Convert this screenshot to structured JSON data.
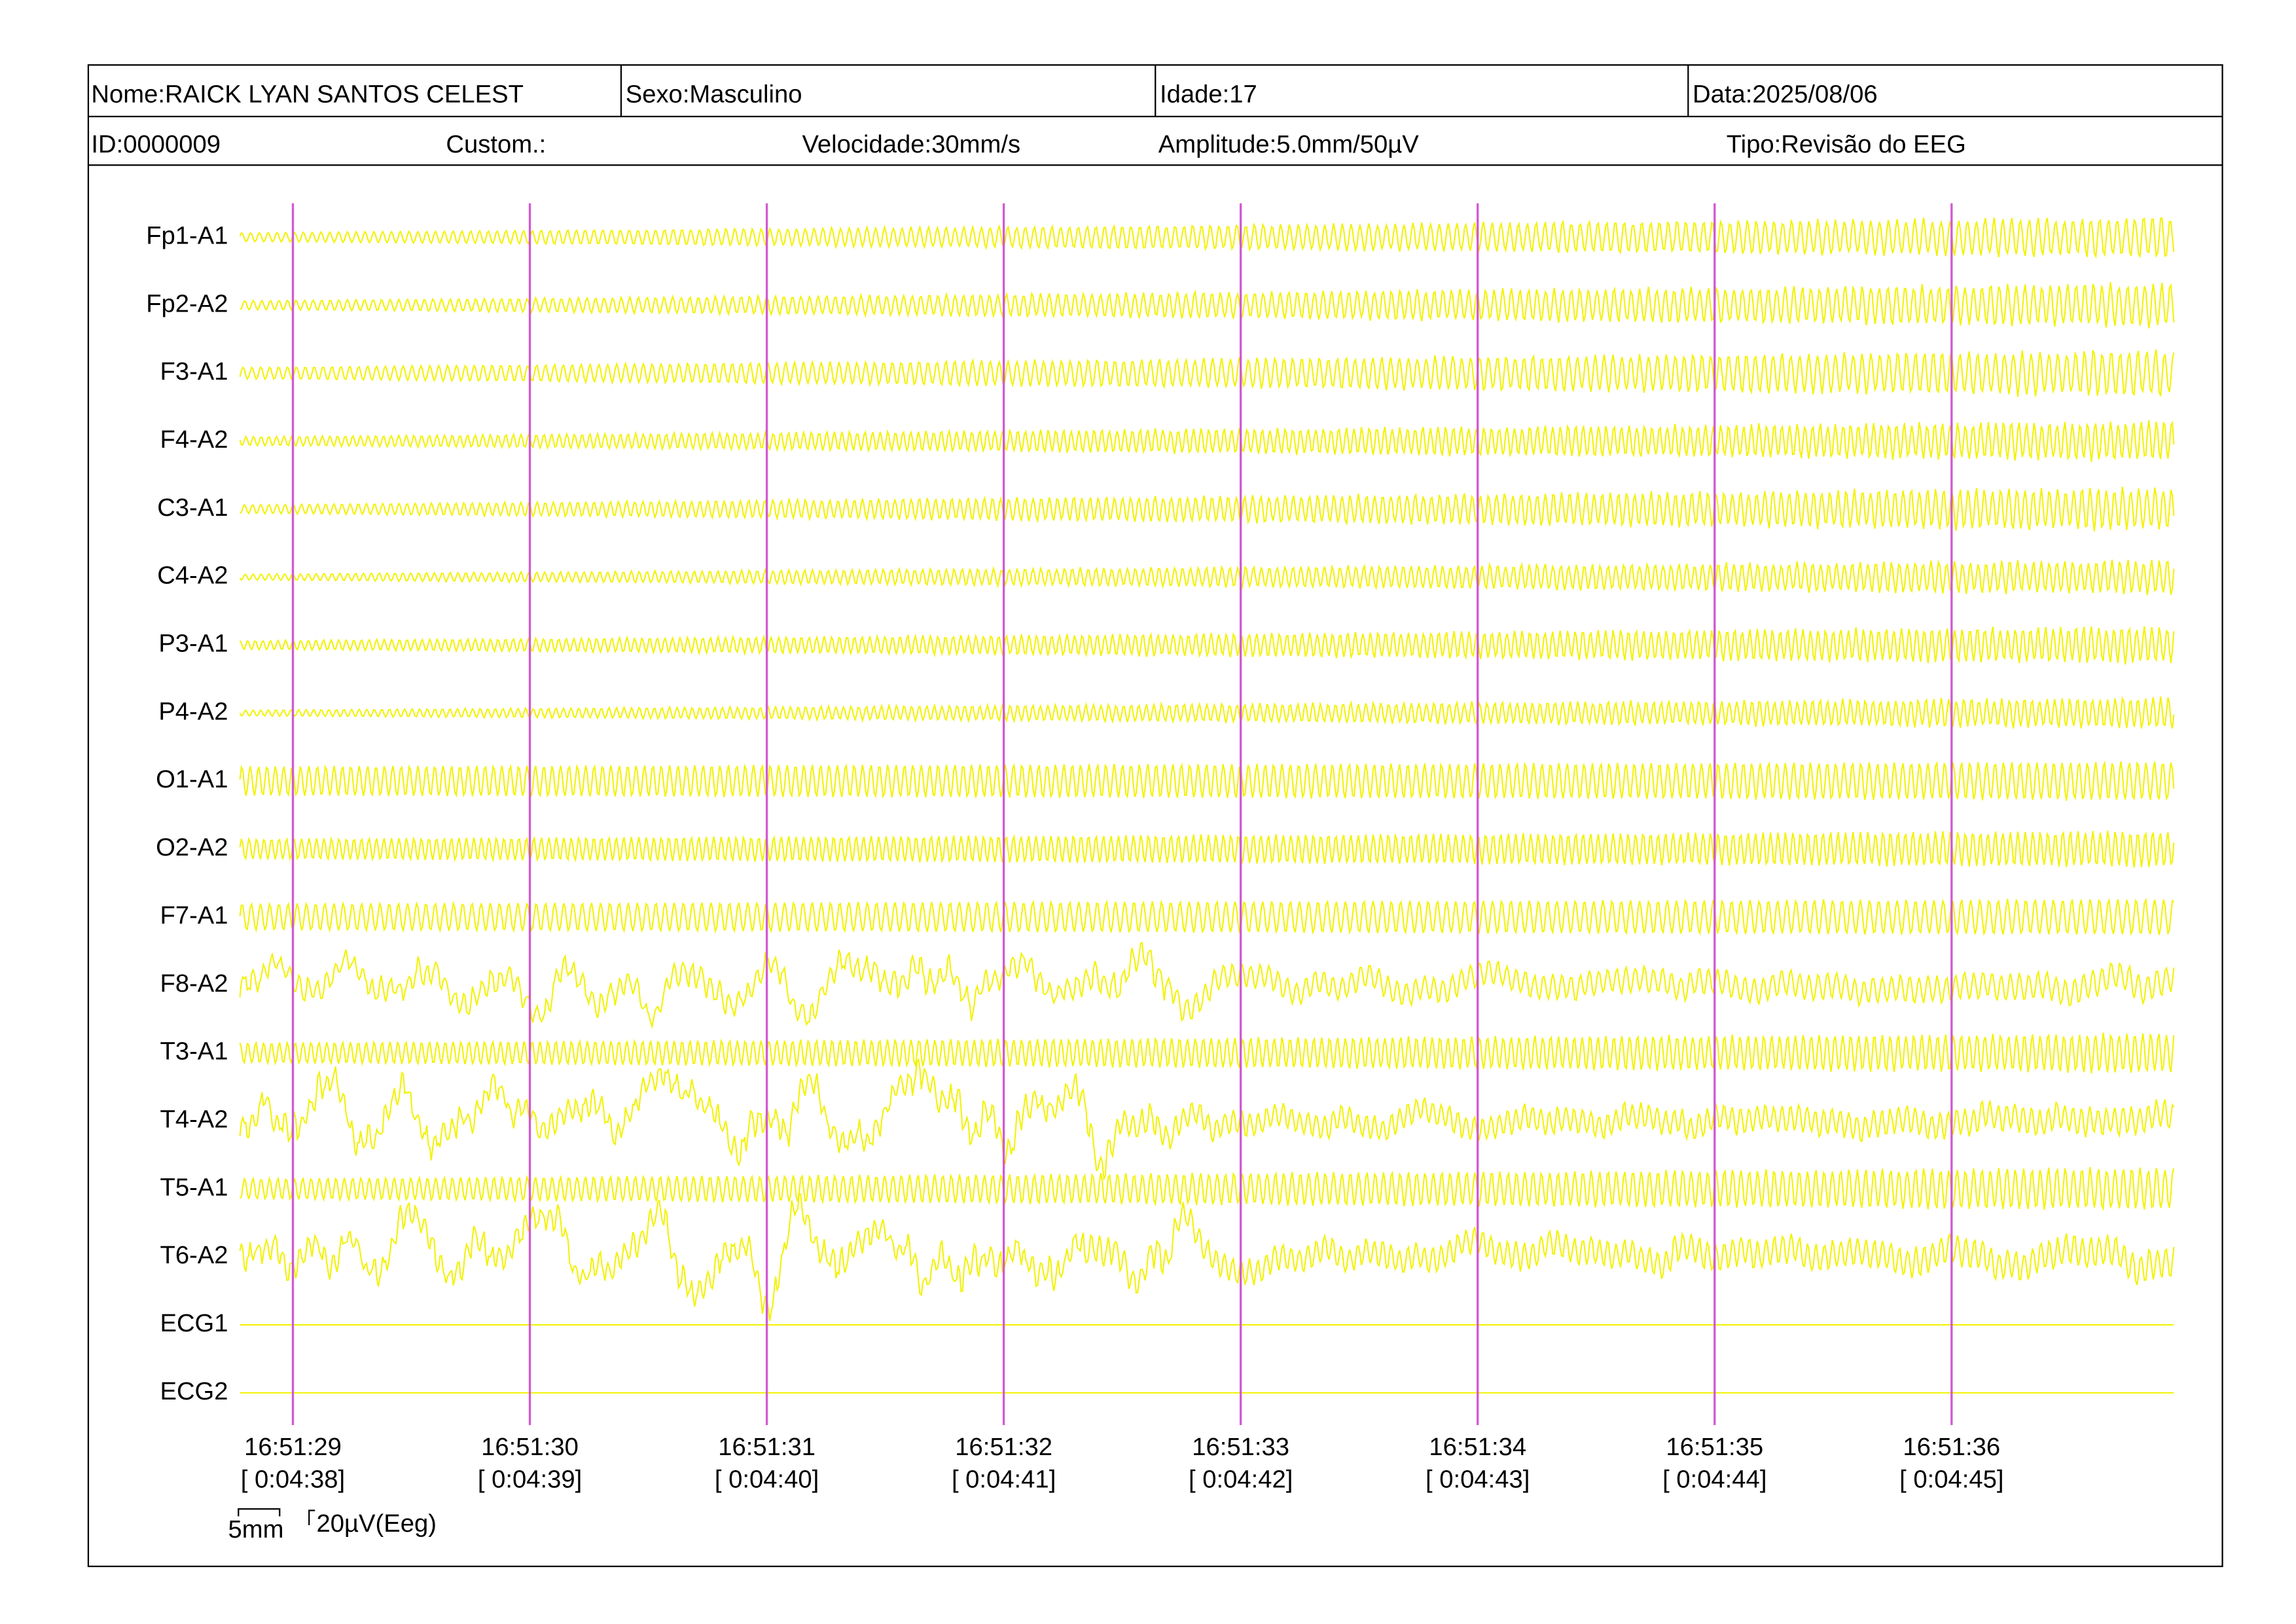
{
  "header": {
    "name": "Nome:RAICK LYAN SANTOS CELEST",
    "sex": "Sexo:Masculino",
    "age": "Idade:17",
    "date": "Data:2025/08/06",
    "id": "ID:0000009",
    "custom": "Custom.:",
    "speed": "Velocidade:30mm/s",
    "amplitude": "Amplitude:5.0mm/50µV",
    "type": "Tipo:Revisão do EEG"
  },
  "channels": [
    "Fp1-A1",
    "Fp2-A2",
    "F3-A1",
    "F4-A2",
    "C3-A1",
    "C4-A2",
    "P3-A1",
    "P4-A2",
    "O1-A1",
    "O2-A2",
    "F7-A1",
    "F8-A2",
    "T3-A1",
    "T4-A2",
    "T5-A1",
    "T6-A2",
    "ECG1",
    "ECG2"
  ],
  "time_marks": [
    {
      "clock": "16:51:29",
      "elapsed": "[ 0:04:38]"
    },
    {
      "clock": "16:51:30",
      "elapsed": "[ 0:04:39]"
    },
    {
      "clock": "16:51:31",
      "elapsed": "[ 0:04:40]"
    },
    {
      "clock": "16:51:32",
      "elapsed": "[ 0:04:41]"
    },
    {
      "clock": "16:51:33",
      "elapsed": "[ 0:04:42]"
    },
    {
      "clock": "16:51:34",
      "elapsed": "[ 0:04:43]"
    },
    {
      "clock": "16:51:35",
      "elapsed": "[ 0:04:44]"
    },
    {
      "clock": "16:51:36",
      "elapsed": "[ 0:04:45]"
    }
  ],
  "scale": {
    "time": "5mm",
    "amplitude": "20µV(Eeg)"
  }
}
